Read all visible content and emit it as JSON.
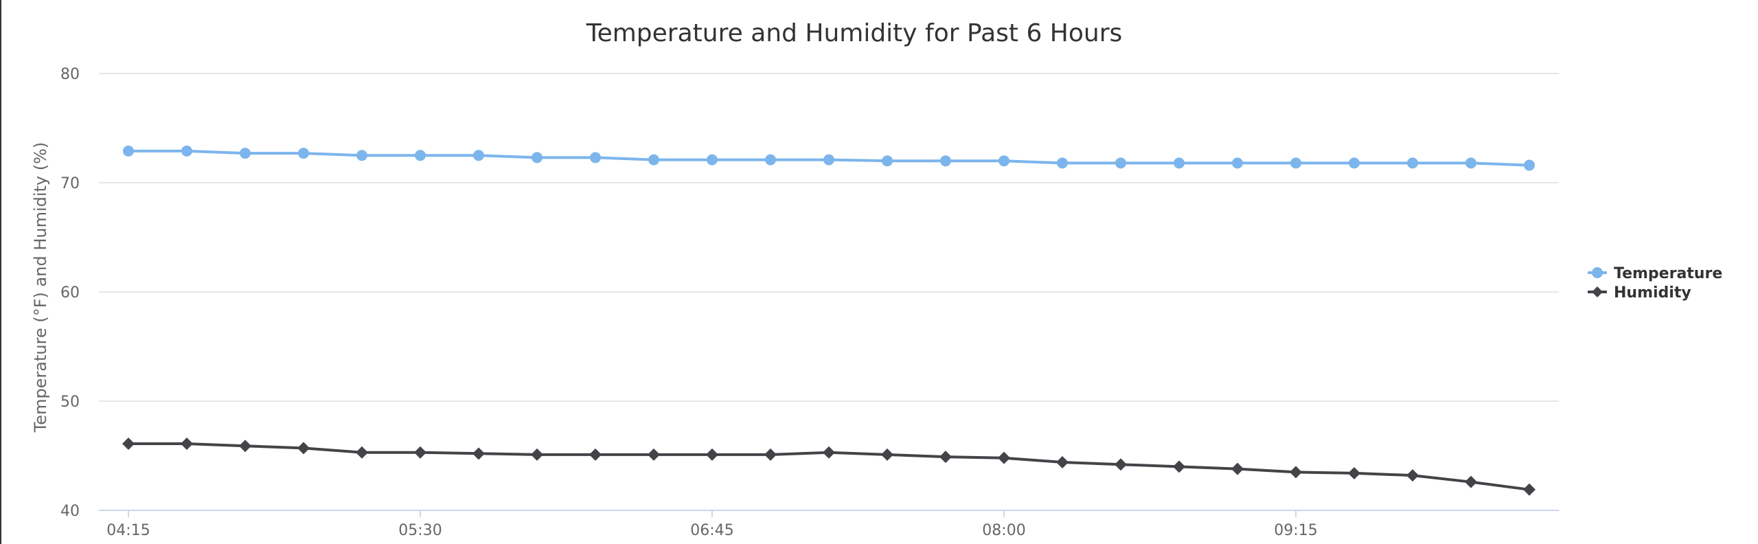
{
  "chart_data": {
    "type": "line",
    "title": "Temperature and Humidity for Past 6 Hours",
    "xlabel": "",
    "ylabel": "Temperature (°F) and Humidity (%)",
    "ylim": [
      40,
      80
    ],
    "yticks": [
      "40",
      "50",
      "60",
      "70",
      "80"
    ],
    "xtick_labels": [
      "04:15",
      "05:30",
      "06:45",
      "08:00",
      "09:15"
    ],
    "x": [
      "04:15",
      "04:30",
      "04:45",
      "05:00",
      "05:15",
      "05:30",
      "05:45",
      "06:00",
      "06:15",
      "06:30",
      "06:45",
      "07:00",
      "07:15",
      "07:30",
      "07:45",
      "08:00",
      "08:15",
      "08:30",
      "08:45",
      "09:00",
      "09:15",
      "09:30",
      "09:45",
      "10:00",
      "10:15"
    ],
    "grid": true,
    "legend_position": "right",
    "series": [
      {
        "name": "Temperature",
        "color": "#7cb5ec",
        "marker": "circle",
        "values": [
          72.9,
          72.9,
          72.7,
          72.7,
          72.5,
          72.5,
          72.5,
          72.3,
          72.3,
          72.1,
          72.1,
          72.1,
          72.1,
          72.0,
          72.0,
          72.0,
          71.8,
          71.8,
          71.8,
          71.8,
          71.8,
          71.8,
          71.8,
          71.8,
          71.6
        ]
      },
      {
        "name": "Humidity",
        "color": "#434348",
        "marker": "diamond",
        "values": [
          46.1,
          46.1,
          45.9,
          45.7,
          45.3,
          45.3,
          45.2,
          45.1,
          45.1,
          45.1,
          45.1,
          45.1,
          45.3,
          45.1,
          44.9,
          44.8,
          44.4,
          44.2,
          44.0,
          43.8,
          43.5,
          43.4,
          43.2,
          42.6,
          41.9
        ]
      }
    ]
  }
}
